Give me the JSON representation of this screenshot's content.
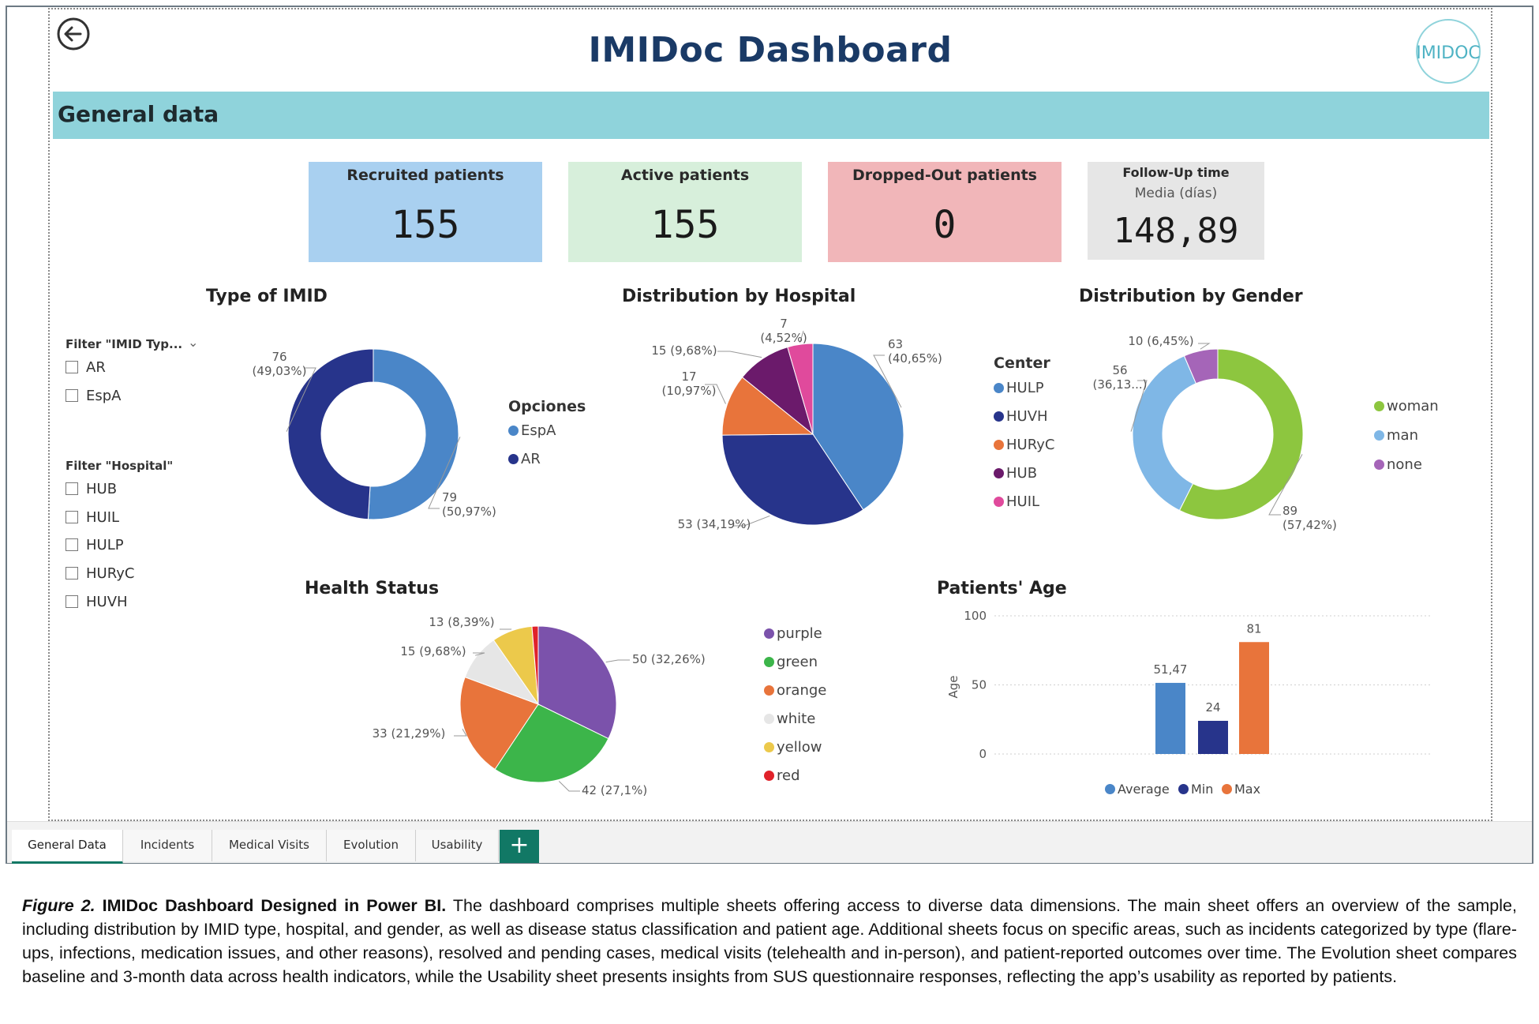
{
  "header": {
    "title": "IMIDoc Dashboard",
    "logo_text": "IMIDOC",
    "section_title": "General data"
  },
  "kpis": [
    {
      "label": "Recruited patients",
      "value": "155",
      "color": "#a9d0f0"
    },
    {
      "label": "Active patients",
      "value": "155",
      "color": "#d7efdb"
    },
    {
      "label": "Dropped-Out patients",
      "value": "0",
      "color": "#f1b6b9"
    },
    {
      "label": "Follow-Up time",
      "sublabel": "Media (días)",
      "value": "148,89",
      "color": "#e6e6e6"
    }
  ],
  "filters": {
    "imid": {
      "title": "Filter \"IMID Typ...",
      "options": [
        "AR",
        "EspA"
      ]
    },
    "hospital": {
      "title": "Filter \"Hospital\"",
      "options": [
        "HUB",
        "HUIL",
        "HULP",
        "HURyC",
        "HUVH"
      ]
    }
  },
  "tabs": [
    "General Data",
    "Incidents",
    "Medical Visits",
    "Evolution",
    "Usability"
  ],
  "add_tab_label": "+",
  "caption": {
    "figure_label": "Figure 2.",
    "bold_title": "IMIDoc Dashboard Designed in Power BI.",
    "text": "The dashboard comprises multiple sheets offering access to diverse data dimensions. The main sheet offers an overview of the sample, including distribution by IMID type, hospital, and gender, as well as disease status classification and patient age. Additional sheets focus on specific areas, such as incidents categorized by type (flare-ups, infections, medication issues, and other reasons), resolved and pending cases, medical visits (telehealth and in-person), and patient-reported outcomes over time. The Evolution sheet compares baseline and 3-month data across health indicators, while the Usability sheet presents insights from SUS questionnaire responses, reflecting the app’s usability as reported by patients."
  },
  "chart_data": [
    {
      "type": "pie",
      "donut": true,
      "title": "Type of IMID",
      "legend_title": "Opciones",
      "legend_position": "right",
      "slices": [
        {
          "name": "EspA",
          "value": 79,
          "label": "79\n(50,97%)",
          "color": "#4a86c8"
        },
        {
          "name": "AR",
          "value": 76,
          "label": "76\n(49,03%)",
          "color": "#27348b"
        }
      ]
    },
    {
      "type": "pie",
      "title": "Distribution by Hospital",
      "legend_title": "Center",
      "legend_position": "right",
      "slices": [
        {
          "name": "HULP",
          "value": 63,
          "label": "63\n(40,65%)",
          "color": "#4a86c8"
        },
        {
          "name": "HUVH",
          "value": 53,
          "label": "53 (34,19%)",
          "color": "#27348b"
        },
        {
          "name": "HURyC",
          "value": 17,
          "label": "17\n(10,97%)",
          "color": "#e8743b"
        },
        {
          "name": "HUB",
          "value": 15,
          "label": "15 (9,68%)",
          "color": "#6b1a6b"
        },
        {
          "name": "HUIL",
          "value": 7,
          "label": "7\n(4,52%)",
          "color": "#e04a9c"
        }
      ]
    },
    {
      "type": "pie",
      "donut": true,
      "title": "Distribution by Gender",
      "legend_position": "right",
      "slices": [
        {
          "name": "woman",
          "value": 89,
          "label": "89\n(57,42%)",
          "color": "#8dc63f"
        },
        {
          "name": "man",
          "value": 56,
          "label": "56\n(36,13...)",
          "color": "#7fb7e6"
        },
        {
          "name": "none",
          "value": 10,
          "label": "10 (6,45%)",
          "color": "#a565b8"
        }
      ]
    },
    {
      "type": "pie",
      "title": "Health Status",
      "legend_position": "right",
      "slices": [
        {
          "name": "purple",
          "value": 50,
          "label": "50 (32,26%)",
          "color": "#7b52ab"
        },
        {
          "name": "green",
          "value": 42,
          "label": "42 (27,1%)",
          "color": "#3cb54a"
        },
        {
          "name": "orange",
          "value": 33,
          "label": "33 (21,29%)",
          "color": "#e8743b"
        },
        {
          "name": "white",
          "value": 15,
          "label": "15 (9,68%)",
          "color": "#e6e6e6"
        },
        {
          "name": "yellow",
          "value": 13,
          "label": "13 (8,39%)",
          "color": "#ecc94b"
        },
        {
          "name": "red",
          "value": 2,
          "label": "",
          "color": "#e0222a"
        }
      ]
    },
    {
      "type": "bar",
      "title": "Patients' Age",
      "ylabel": "Age",
      "ylim": [
        0,
        100
      ],
      "yticks": [
        0,
        50,
        100
      ],
      "legend_position": "bottom",
      "series": [
        {
          "name": "Average",
          "value": 51.47,
          "label": "51,47",
          "color": "#4a86c8"
        },
        {
          "name": "Min",
          "value": 24,
          "label": "24",
          "color": "#27348b"
        },
        {
          "name": "Max",
          "value": 81,
          "label": "81",
          "color": "#e8743b"
        }
      ]
    }
  ]
}
